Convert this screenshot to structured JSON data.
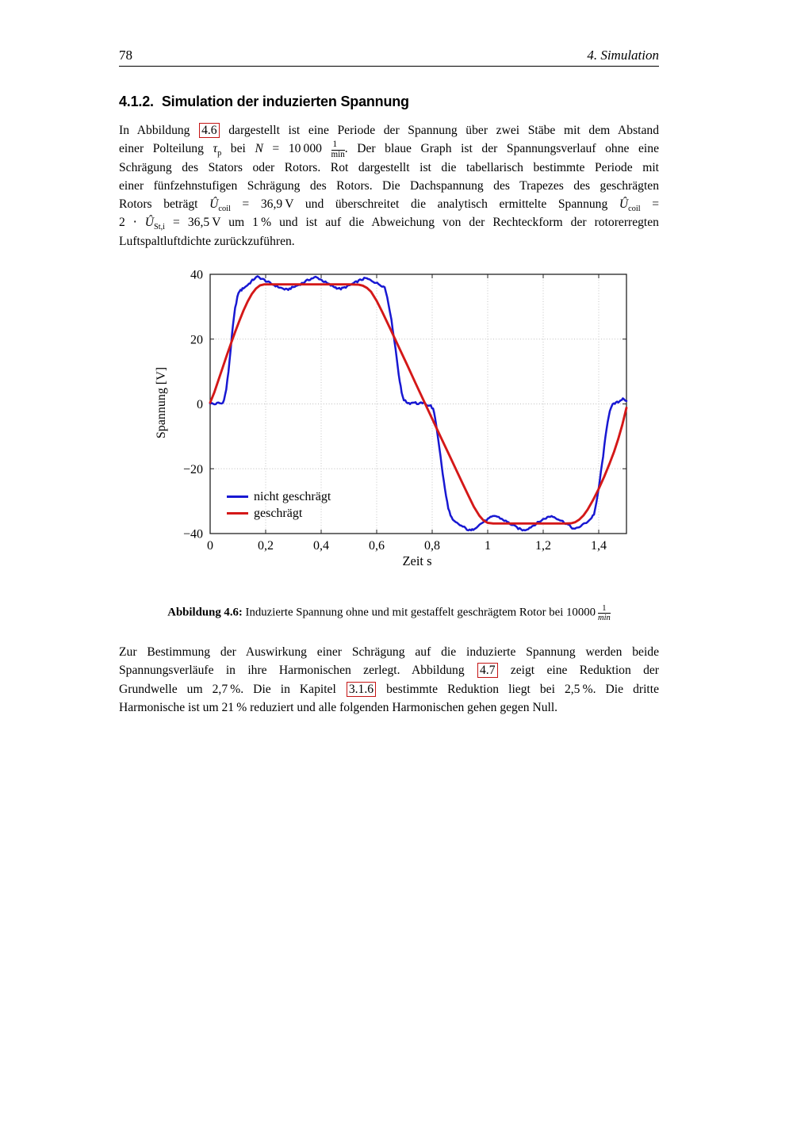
{
  "page": {
    "number": "78",
    "header_right": "4. Simulation"
  },
  "section": {
    "number": "4.1.2.",
    "title": "Simulation der induzierten Spannung"
  },
  "paragraph1": {
    "lines": [
      [
        {
          "t": "In Abbildung "
        },
        {
          "t": "4.6",
          "s": "ref"
        },
        {
          "t": " dargestellt ist eine Periode der Spannung über zwei Stäbe mit dem Abstand"
        }
      ],
      [
        {
          "t": "einer Polteilung "
        },
        {
          "t": "τ",
          "s": "i"
        },
        {
          "t": "p",
          "s": "sub"
        },
        {
          "t": " bei "
        },
        {
          "t": "N",
          "s": "i"
        },
        {
          "t": " = 10 000 "
        },
        {
          "s": "frac",
          "n": "1",
          "d": "min"
        },
        {
          "t": ". Der blaue Graph ist der Spannungsverlauf ohne eine"
        }
      ],
      [
        {
          "t": "Schrägung des Stators oder Rotors. Rot dargestellt ist die tabellarisch bestimmte Periode mit"
        }
      ],
      [
        {
          "t": "einer fünfzehnstufigen Schrägung des Rotors. Die Dachspannung des Trapezes des geschrägten"
        }
      ],
      [
        {
          "t": "Rotors beträgt "
        },
        {
          "t": "Û",
          "s": "i"
        },
        {
          "t": "coil",
          "s": "sub"
        },
        {
          "t": " = 36,9 V und überschreitet die analytisch ermittelte Spannung "
        },
        {
          "t": "Û",
          "s": "i"
        },
        {
          "t": "coil",
          "s": "sub"
        },
        {
          "t": " ="
        }
      ],
      [
        {
          "t": "2 ⋅ "
        },
        {
          "t": "Û",
          "s": "i"
        },
        {
          "t": "St,i",
          "s": "sub"
        },
        {
          "t": " = 36,5 V um 1 % und ist auf die Abweichung von der Rechteckform der rotorerregten"
        }
      ],
      [
        {
          "t": "Luftspaltluftdichte zurückzuführen."
        }
      ]
    ]
  },
  "paragraph2": {
    "lines": [
      [
        {
          "t": "Zur Bestimmung der Auswirkung einer Schrägung auf die induzierte Spannung werden beide"
        }
      ],
      [
        {
          "t": "Spannungsverläufe in ihre Harmonischen zerlegt. Abbildung "
        },
        {
          "t": "4.7",
          "s": "ref"
        },
        {
          "t": " zeigt eine Reduktion der"
        }
      ],
      [
        {
          "t": "Grundwelle um 2,7 %. Die in Kapitel "
        },
        {
          "t": "3.1.6",
          "s": "ref"
        },
        {
          "t": " bestimmte Reduktion liegt bei 2,5 %. Die dritte"
        }
      ],
      [
        {
          "t": "Harmonische ist um 21 % reduziert und alle folgenden Harmonischen gehen gegen Null."
        }
      ]
    ]
  },
  "figure": {
    "caption_segments": [
      {
        "t": "Abbildung 4.6:",
        "s": "b"
      },
      {
        "t": " Induzierte Spannung ohne und mit gestaffelt geschrägtem Rotor bei 10000 "
      },
      {
        "s": "frac",
        "n": "1",
        "d": "min",
        "di": true
      }
    ]
  },
  "chart_data": {
    "type": "line",
    "title": "",
    "xlabel": "Zeit s",
    "ylabel": "Spannung [V]",
    "xlim": [
      0,
      1.5
    ],
    "ylim": [
      -40,
      40
    ],
    "x_ticks": [
      0,
      0.2,
      0.4,
      0.6,
      0.8,
      1,
      1.2,
      1.4
    ],
    "x_tick_labels": [
      "0",
      "0,2",
      "0,4",
      "0,6",
      "0,8",
      "1",
      "1,2",
      "1,4"
    ],
    "y_ticks": [
      40,
      20,
      0,
      -20,
      -40
    ],
    "y_tick_labels": [
      "40",
      "20",
      "0",
      "−20",
      "−40"
    ],
    "grid": "major, dotted",
    "grid_color": "#bdbdbd",
    "axis_color": "#222222",
    "legend_position": "south west",
    "series": [
      {
        "name": "nicht geschrägt",
        "color": "#1818d2",
        "width": 2.5,
        "noise": 0.3,
        "points": [
          [
            0,
            0.3
          ],
          [
            0.015,
            -0.1
          ],
          [
            0.03,
            0.3
          ],
          [
            0.042,
            0.1
          ],
          [
            0.05,
            1.2
          ],
          [
            0.058,
            4.5
          ],
          [
            0.066,
            10
          ],
          [
            0.074,
            17
          ],
          [
            0.082,
            24
          ],
          [
            0.09,
            29.5
          ],
          [
            0.098,
            33
          ],
          [
            0.106,
            34.9
          ],
          [
            0.113,
            35.2
          ],
          [
            0.12,
            35.8
          ],
          [
            0.128,
            36.2
          ],
          [
            0.136,
            36.8
          ],
          [
            0.144,
            37.4
          ],
          [
            0.152,
            38.1
          ],
          [
            0.16,
            38.7
          ],
          [
            0.171,
            39.2
          ],
          [
            0.182,
            38.8
          ],
          [
            0.196,
            38.2
          ],
          [
            0.21,
            37.5
          ],
          [
            0.225,
            36.9
          ],
          [
            0.24,
            36.3
          ],
          [
            0.255,
            35.8
          ],
          [
            0.268,
            35.4
          ],
          [
            0.277,
            35.2
          ],
          [
            0.29,
            35.7
          ],
          [
            0.305,
            36.2
          ],
          [
            0.32,
            36.8
          ],
          [
            0.335,
            37.4
          ],
          [
            0.35,
            38.1
          ],
          [
            0.365,
            38.7
          ],
          [
            0.38,
            39.1
          ],
          [
            0.392,
            38.7
          ],
          [
            0.406,
            38
          ],
          [
            0.42,
            37.3
          ],
          [
            0.434,
            36.6
          ],
          [
            0.448,
            36.1
          ],
          [
            0.46,
            35.7
          ],
          [
            0.471,
            35.5
          ],
          [
            0.484,
            35.9
          ],
          [
            0.498,
            36.4
          ],
          [
            0.512,
            37
          ],
          [
            0.526,
            37.6
          ],
          [
            0.54,
            38.2
          ],
          [
            0.56,
            38.8
          ],
          [
            0.574,
            38.3
          ],
          [
            0.588,
            37.8
          ],
          [
            0.602,
            37.2
          ],
          [
            0.615,
            36.7
          ],
          [
            0.629,
            36
          ],
          [
            0.638,
            33
          ],
          [
            0.648,
            28.5
          ],
          [
            0.658,
            23
          ],
          [
            0.668,
            17
          ],
          [
            0.676,
            11.5
          ],
          [
            0.683,
            7
          ],
          [
            0.69,
            3.5
          ],
          [
            0.698,
            1.3
          ],
          [
            0.708,
            0.5
          ],
          [
            0.72,
            0.2
          ],
          [
            0.735,
            0.6
          ],
          [
            0.75,
            -0.1
          ],
          [
            0.765,
            0.4
          ],
          [
            0.78,
            -0.2
          ],
          [
            0.795,
            -0.6
          ],
          [
            0.803,
            -1.6
          ],
          [
            0.81,
            -4
          ],
          [
            0.818,
            -8.5
          ],
          [
            0.826,
            -13.5
          ],
          [
            0.834,
            -19
          ],
          [
            0.842,
            -24
          ],
          [
            0.85,
            -28.5
          ],
          [
            0.858,
            -32
          ],
          [
            0.866,
            -34.5
          ],
          [
            0.874,
            -35.9
          ],
          [
            0.885,
            -36.6
          ],
          [
            0.9,
            -37.4
          ],
          [
            0.915,
            -38.1
          ],
          [
            0.93,
            -38.9
          ],
          [
            0.94,
            -39.1
          ],
          [
            0.952,
            -38.4
          ],
          [
            0.965,
            -37.6
          ],
          [
            0.98,
            -36.7
          ],
          [
            0.995,
            -35.9
          ],
          [
            1.01,
            -35.1
          ],
          [
            1.026,
            -34.5
          ],
          [
            1.04,
            -35
          ],
          [
            1.055,
            -35.7
          ],
          [
            1.07,
            -36.4
          ],
          [
            1.085,
            -37.2
          ],
          [
            1.1,
            -37.9
          ],
          [
            1.115,
            -38.6
          ],
          [
            1.13,
            -39
          ],
          [
            1.142,
            -38.6
          ],
          [
            1.155,
            -38
          ],
          [
            1.17,
            -37.2
          ],
          [
            1.185,
            -36.4
          ],
          [
            1.2,
            -35.6
          ],
          [
            1.215,
            -35
          ],
          [
            1.23,
            -34.6
          ],
          [
            1.245,
            -35.1
          ],
          [
            1.26,
            -35.8
          ],
          [
            1.275,
            -36.5
          ],
          [
            1.29,
            -37.3
          ],
          [
            1.3,
            -38
          ],
          [
            1.314,
            -38.7
          ],
          [
            1.325,
            -38.2
          ],
          [
            1.34,
            -37.4
          ],
          [
            1.355,
            -36.6
          ],
          [
            1.37,
            -35.6
          ],
          [
            1.383,
            -34
          ],
          [
            1.392,
            -30.5
          ],
          [
            1.4,
            -26
          ],
          [
            1.408,
            -21
          ],
          [
            1.416,
            -16
          ],
          [
            1.424,
            -10.5
          ],
          [
            1.432,
            -5.5
          ],
          [
            1.44,
            -2
          ],
          [
            1.45,
            -0.3
          ],
          [
            1.462,
            0.3
          ],
          [
            1.475,
            0.8
          ],
          [
            1.487,
            1.8
          ],
          [
            1.5,
            0.9
          ]
        ]
      },
      {
        "name": "geschrägt",
        "color": "#d41818",
        "width": 2.9,
        "noise": 0,
        "points": [
          [
            0,
            0.4
          ],
          [
            0.015,
            3.6
          ],
          [
            0.03,
            7.4
          ],
          [
            0.045,
            11.2
          ],
          [
            0.06,
            15
          ],
          [
            0.075,
            18.7
          ],
          [
            0.09,
            22.2
          ],
          [
            0.105,
            25.6
          ],
          [
            0.12,
            28.8
          ],
          [
            0.135,
            31.6
          ],
          [
            0.15,
            33.9
          ],
          [
            0.165,
            35.6
          ],
          [
            0.18,
            36.6
          ],
          [
            0.195,
            36.9
          ],
          [
            0.3,
            36.9
          ],
          [
            0.42,
            36.9
          ],
          [
            0.5,
            36.9
          ],
          [
            0.535,
            36.8
          ],
          [
            0.55,
            36.5
          ],
          [
            0.565,
            35.8
          ],
          [
            0.58,
            34.6
          ],
          [
            0.6,
            31.8
          ],
          [
            0.62,
            28.4
          ],
          [
            0.65,
            23
          ],
          [
            0.68,
            17.5
          ],
          [
            0.71,
            12
          ],
          [
            0.74,
            6.4
          ],
          [
            0.77,
            0.9
          ],
          [
            0.8,
            -4.6
          ],
          [
            0.83,
            -10.1
          ],
          [
            0.86,
            -15.5
          ],
          [
            0.89,
            -21
          ],
          [
            0.91,
            -24.6
          ],
          [
            0.93,
            -28.2
          ],
          [
            0.95,
            -31.7
          ],
          [
            0.97,
            -34.5
          ],
          [
            0.985,
            -36
          ],
          [
            1,
            -36.7
          ],
          [
            1.02,
            -36.9
          ],
          [
            1.15,
            -36.9
          ],
          [
            1.28,
            -36.9
          ],
          [
            1.3,
            -36.85
          ],
          [
            1.315,
            -36.5
          ],
          [
            1.33,
            -35.7
          ],
          [
            1.345,
            -34.4
          ],
          [
            1.36,
            -32.6
          ],
          [
            1.38,
            -29.6
          ],
          [
            1.4,
            -26.2
          ],
          [
            1.42,
            -22.4
          ],
          [
            1.44,
            -18.2
          ],
          [
            1.455,
            -14.8
          ],
          [
            1.47,
            -10.9
          ],
          [
            1.485,
            -6.4
          ],
          [
            1.5,
            -1.2
          ]
        ]
      }
    ]
  }
}
